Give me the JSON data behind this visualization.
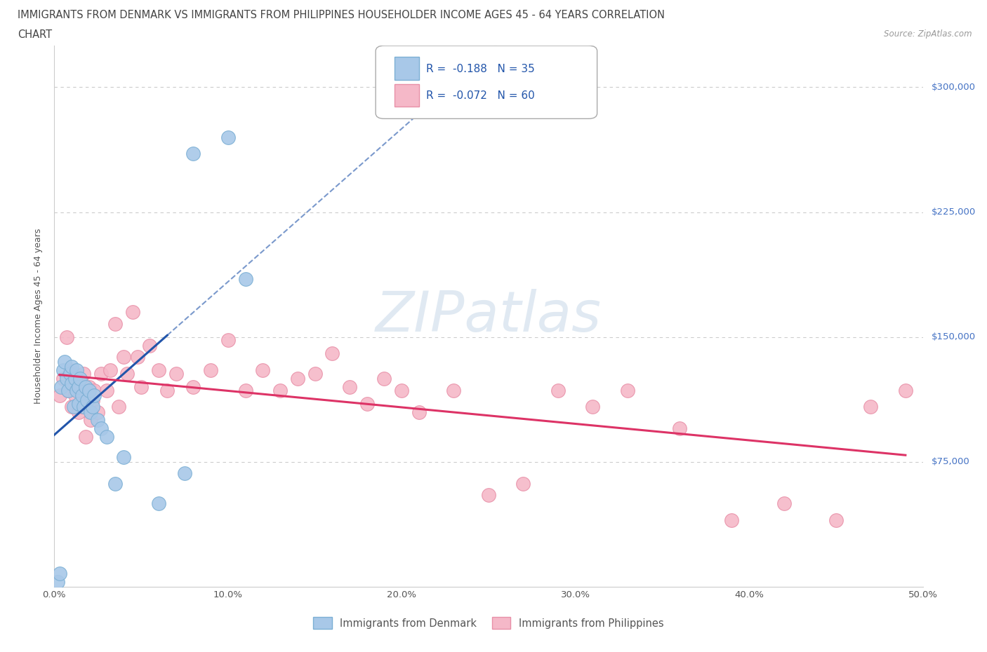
{
  "title_line1": "IMMIGRANTS FROM DENMARK VS IMMIGRANTS FROM PHILIPPINES HOUSEHOLDER INCOME AGES 45 - 64 YEARS CORRELATION",
  "title_line2": "CHART",
  "source_text": "Source: ZipAtlas.com",
  "ylabel": "Householder Income Ages 45 - 64 years",
  "xlim": [
    0.0,
    0.5
  ],
  "ylim": [
    0,
    325000
  ],
  "xticks": [
    0.0,
    0.1,
    0.2,
    0.3,
    0.4,
    0.5
  ],
  "xticklabels": [
    "0.0%",
    "10.0%",
    "20.0%",
    "30.0%",
    "40.0%",
    "50.0%"
  ],
  "yticks": [
    75000,
    150000,
    225000,
    300000
  ],
  "yticklabels": [
    "$75,000",
    "$150,000",
    "$225,000",
    "$300,000"
  ],
  "denmark_color": "#A8C8E8",
  "denmark_edge": "#7BAFD4",
  "philippines_color": "#F5B8C8",
  "philippines_edge": "#E890A8",
  "trend_denmark_color": "#2255AA",
  "trend_philippines_color": "#DD3366",
  "legend_R_denmark": "R =  -0.188",
  "legend_N_denmark": "N = 35",
  "legend_R_philippines": "R =  -0.072",
  "legend_N_philippines": "N = 60",
  "legend_label_denmark": "Immigrants from Denmark",
  "legend_label_philippines": "Immigrants from Philippines",
  "watermark_text": "ZIPatlas",
  "background_color": "#ffffff",
  "denmark_x": [
    0.002,
    0.003,
    0.004,
    0.005,
    0.006,
    0.007,
    0.008,
    0.009,
    0.01,
    0.01,
    0.011,
    0.012,
    0.013,
    0.013,
    0.014,
    0.014,
    0.015,
    0.016,
    0.017,
    0.018,
    0.019,
    0.02,
    0.021,
    0.022,
    0.023,
    0.025,
    0.027,
    0.03,
    0.035,
    0.04,
    0.06,
    0.075,
    0.08,
    0.1,
    0.11
  ],
  "denmark_y": [
    3000,
    8000,
    120000,
    130000,
    135000,
    125000,
    118000,
    128000,
    132000,
    122000,
    108000,
    125000,
    118000,
    130000,
    110000,
    120000,
    125000,
    115000,
    108000,
    120000,
    112000,
    118000,
    105000,
    108000,
    115000,
    100000,
    95000,
    90000,
    62000,
    78000,
    50000,
    68000,
    260000,
    270000,
    185000
  ],
  "philippines_x": [
    0.003,
    0.005,
    0.007,
    0.008,
    0.009,
    0.01,
    0.011,
    0.012,
    0.013,
    0.014,
    0.015,
    0.016,
    0.017,
    0.018,
    0.019,
    0.02,
    0.021,
    0.022,
    0.023,
    0.025,
    0.027,
    0.03,
    0.032,
    0.035,
    0.037,
    0.04,
    0.042,
    0.045,
    0.048,
    0.05,
    0.055,
    0.06,
    0.065,
    0.07,
    0.08,
    0.09,
    0.1,
    0.11,
    0.12,
    0.13,
    0.14,
    0.15,
    0.16,
    0.17,
    0.18,
    0.19,
    0.2,
    0.21,
    0.23,
    0.25,
    0.27,
    0.29,
    0.31,
    0.33,
    0.36,
    0.39,
    0.42,
    0.45,
    0.47,
    0.49
  ],
  "philippines_y": [
    115000,
    125000,
    150000,
    118000,
    130000,
    108000,
    120000,
    115000,
    125000,
    105000,
    118000,
    108000,
    128000,
    90000,
    115000,
    120000,
    100000,
    112000,
    118000,
    105000,
    128000,
    118000,
    130000,
    158000,
    108000,
    138000,
    128000,
    165000,
    138000,
    120000,
    145000,
    130000,
    118000,
    128000,
    120000,
    130000,
    148000,
    118000,
    130000,
    118000,
    125000,
    128000,
    140000,
    120000,
    110000,
    125000,
    118000,
    105000,
    118000,
    55000,
    62000,
    118000,
    108000,
    118000,
    95000,
    40000,
    50000,
    40000,
    108000,
    118000
  ]
}
